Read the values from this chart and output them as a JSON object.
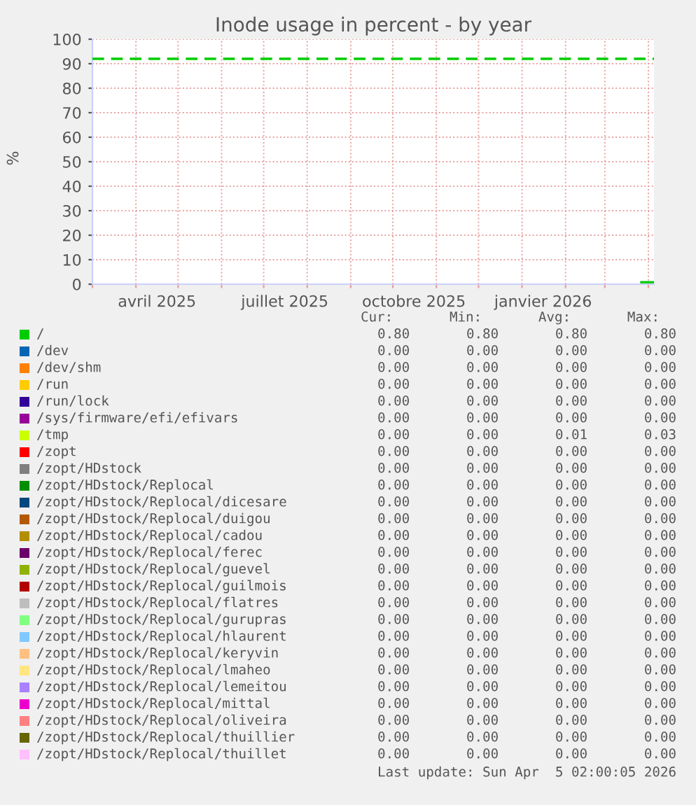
{
  "chart_data": {
    "type": "line",
    "title": "Inode usage in percent - by year",
    "ylabel": "%",
    "xlim": [
      "2025-03-01",
      "2026-04-05"
    ],
    "xticks": [
      {
        "value": "2025-03-01",
        "label": null
      },
      {
        "value": "2025-04-01",
        "label": null
      },
      {
        "value": "2025-05-01",
        "label": null
      },
      {
        "value": "2025-06-01",
        "label": null
      },
      {
        "value": "2025-07-01",
        "label": null
      },
      {
        "value": "2025-08-01",
        "label": null
      },
      {
        "value": "2025-09-01",
        "label": null
      },
      {
        "value": "2025-10-01",
        "label": null
      },
      {
        "value": "2025-11-01",
        "label": null
      },
      {
        "value": "2025-12-01",
        "label": null
      },
      {
        "value": "2026-01-01",
        "label": null
      },
      {
        "value": "2026-02-01",
        "label": null
      },
      {
        "value": "2026-03-01",
        "label": null
      },
      {
        "value": "2026-04-01",
        "label": null
      },
      {
        "value": "2025-04-16",
        "label": "avril 2025"
      },
      {
        "value": "2025-07-16",
        "label": "juillet 2025"
      },
      {
        "value": "2025-10-16",
        "label": "octobre 2025"
      },
      {
        "value": "2026-01-16",
        "label": "janvier 2026"
      }
    ],
    "ylim": [
      0,
      100
    ],
    "yticks": [
      0,
      10,
      20,
      30,
      40,
      50,
      60,
      70,
      80,
      90,
      100
    ],
    "grid": true,
    "legend": "bottom",
    "line_style": "solid",
    "marker": "none",
    "x": [
      "2026-03-27",
      "2026-04-05"
    ],
    "ref_lines": [
      {
        "axis": "y",
        "value": 92,
        "color": "#00cc00",
        "line_style": "dashed"
      }
    ],
    "series": [
      {
        "name": "/",
        "color": "#00cc00",
        "values": [
          0.8,
          0.8
        ]
      },
      {
        "name": "/dev",
        "color": "#0066b3",
        "values": [
          null,
          null
        ]
      },
      {
        "name": "/dev/shm",
        "color": "#ff8000",
        "values": [
          null,
          null
        ]
      },
      {
        "name": "/run",
        "color": "#ffcc00",
        "values": [
          null,
          null
        ]
      },
      {
        "name": "/run/lock",
        "color": "#330099",
        "values": [
          null,
          null
        ]
      },
      {
        "name": "/sys/firmware/efi/efivars",
        "color": "#990099",
        "values": [
          null,
          null
        ]
      },
      {
        "name": "/tmp",
        "color": "#ccff00",
        "values": [
          null,
          null
        ]
      },
      {
        "name": "/zopt",
        "color": "#ff0000",
        "values": [
          null,
          null
        ]
      },
      {
        "name": "/zopt/HDstock",
        "color": "#808080",
        "values": [
          null,
          null
        ]
      },
      {
        "name": "/zopt/HDstock/Replocal",
        "color": "#008f00",
        "values": [
          null,
          null
        ]
      },
      {
        "name": "/zopt/HDstock/Replocal/dicesare",
        "color": "#00487d",
        "values": [
          null,
          null
        ]
      },
      {
        "name": "/zopt/HDstock/Replocal/duigou",
        "color": "#b35a00",
        "values": [
          null,
          null
        ]
      },
      {
        "name": "/zopt/HDstock/Replocal/cadou",
        "color": "#b38f00",
        "values": [
          null,
          null
        ]
      },
      {
        "name": "/zopt/HDstock/Replocal/ferec",
        "color": "#6b006b",
        "values": [
          null,
          null
        ]
      },
      {
        "name": "/zopt/HDstock/Replocal/guevel",
        "color": "#8fb300",
        "values": [
          null,
          null
        ]
      },
      {
        "name": "/zopt/HDstock/Replocal/guilmois",
        "color": "#b30000",
        "values": [
          null,
          null
        ]
      },
      {
        "name": "/zopt/HDstock/Replocal/flatres",
        "color": "#bebebe",
        "values": [
          null,
          null
        ]
      },
      {
        "name": "/zopt/HDstock/Replocal/gurupras",
        "color": "#80ff80",
        "values": [
          null,
          null
        ]
      },
      {
        "name": "/zopt/HDstock/Replocal/hlaurent",
        "color": "#80c9ff",
        "values": [
          null,
          null
        ]
      },
      {
        "name": "/zopt/HDstock/Replocal/keryvin",
        "color": "#ffc080",
        "values": [
          null,
          null
        ]
      },
      {
        "name": "/zopt/HDstock/Replocal/lmaheo",
        "color": "#ffe680",
        "values": [
          null,
          null
        ]
      },
      {
        "name": "/zopt/HDstock/Replocal/lemeitou",
        "color": "#aa80ff",
        "values": [
          null,
          null
        ]
      },
      {
        "name": "/zopt/HDstock/Replocal/mittal",
        "color": "#ee00cc",
        "values": [
          null,
          null
        ]
      },
      {
        "name": "/zopt/HDstock/Replocal/oliveira",
        "color": "#ff8080",
        "values": [
          null,
          null
        ]
      },
      {
        "name": "/zopt/HDstock/Replocal/thuillier",
        "color": "#666600",
        "values": [
          null,
          null
        ]
      },
      {
        "name": "/zopt/HDstock/Replocal/thuillet",
        "color": "#ffbfff",
        "values": [
          null,
          null
        ]
      }
    ],
    "annotations": [
      "Cur:       Min:       Avg:       Max:",
      "0.80       0.80       0.80       0.80",
      "0.00       0.00       0.00       0.00",
      "0.00       0.00       0.00       0.00",
      "0.00       0.00       0.00       0.00",
      "0.00       0.00       0.00       0.00",
      "0.00       0.00       0.00       0.00",
      "0.00       0.00       0.01       0.03",
      "0.00       0.00       0.00       0.00",
      "0.00       0.00       0.00       0.00",
      "0.00       0.00       0.00       0.00",
      "0.00       0.00       0.00       0.00",
      "0.00       0.00       0.00       0.00",
      "0.00       0.00       0.00       0.00",
      "0.00       0.00       0.00       0.00",
      "0.00       0.00       0.00       0.00",
      "0.00       0.00       0.00       0.00",
      "0.00       0.00       0.00       0.00",
      "0.00       0.00       0.00       0.00",
      "0.00       0.00       0.00       0.00",
      "0.00       0.00       0.00       0.00",
      "0.00       0.00       0.00       0.00",
      "0.00       0.00       0.00       0.00",
      "0.00       0.00       0.00       0.00",
      "0.00       0.00       0.00       0.00",
      "0.00       0.00       0.00       0.00",
      "0.00       0.00       0.00       0.00",
      "Last update: Sun Apr  5 02:00:05 2026"
    ]
  }
}
